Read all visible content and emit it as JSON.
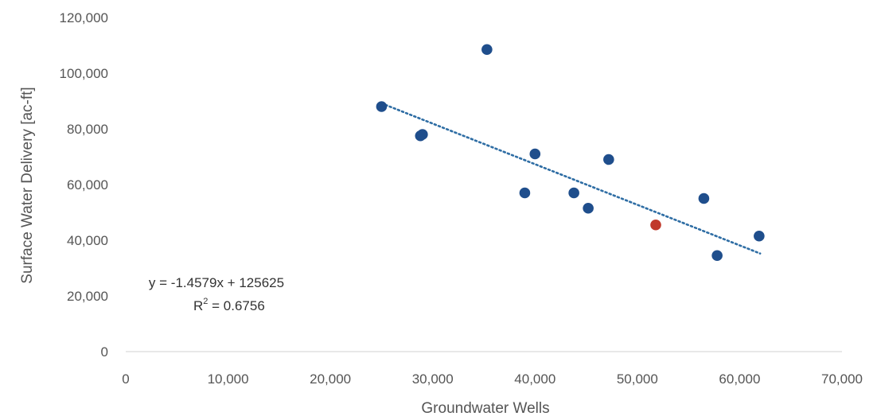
{
  "chart_data": {
    "type": "scatter",
    "xlabel": "Groundwater Wells",
    "ylabel": "Surface Water Delivery [ac-ft]",
    "xlim": [
      0,
      70000
    ],
    "ylim": [
      0,
      120000
    ],
    "x_ticks": [
      0,
      10000,
      20000,
      30000,
      40000,
      50000,
      60000,
      70000
    ],
    "x_tick_labels": [
      "0",
      "10,000",
      "20,000",
      "30,000",
      "40,000",
      "50,000",
      "60,000",
      "70,000"
    ],
    "y_ticks": [
      0,
      20000,
      40000,
      60000,
      80000,
      100000,
      120000
    ],
    "y_tick_labels": [
      "0",
      "20,000",
      "40,000",
      "60,000",
      "80,000",
      "100,000",
      "120,000"
    ],
    "grid": false,
    "legend": "none",
    "series": [
      {
        "color": "#1f4e8c",
        "points": [
          {
            "x": 25000,
            "y": 88000
          },
          {
            "x": 28800,
            "y": 77500
          },
          {
            "x": 29000,
            "y": 78000
          },
          {
            "x": 35300,
            "y": 108500
          },
          {
            "x": 39000,
            "y": 57000
          },
          {
            "x": 40000,
            "y": 71000
          },
          {
            "x": 43800,
            "y": 57000
          },
          {
            "x": 45200,
            "y": 51500
          },
          {
            "x": 47200,
            "y": 69000
          },
          {
            "x": 56500,
            "y": 55000
          },
          {
            "x": 57800,
            "y": 34500
          },
          {
            "x": 61900,
            "y": 41500
          }
        ]
      },
      {
        "color": "#c0392b",
        "points": [
          {
            "x": 51800,
            "y": 45500
          }
        ]
      }
    ],
    "trendline": {
      "style": "dotted",
      "color": "#2e6da4",
      "slope": -1.4579,
      "intercept": 125625,
      "x_range": [
        25000,
        62000
      ],
      "equation_label": "y = -1.4579x + 125625",
      "r2_prefix": "R",
      "r2_sup": "2",
      "r2_suffix": " = 0.6756"
    }
  }
}
